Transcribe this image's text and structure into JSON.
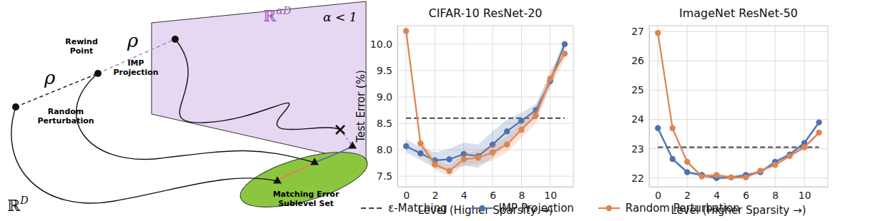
{
  "diagram": {
    "space_full": {
      "base": "ℝ",
      "exp": "D"
    },
    "space_sub": {
      "base": "ℝ",
      "exp": "αD"
    },
    "constraint": "α < 1",
    "rho": "ρ",
    "rewind": [
      "Rewind",
      "Point"
    ],
    "perturbation": [
      "Random",
      "Perturbation"
    ],
    "projection": [
      "IMP",
      "Projection"
    ],
    "sublevel": [
      "Matching Error",
      "Sublevel Set"
    ]
  },
  "chart_data": [
    {
      "type": "line",
      "title": "CIFAR-10 ResNet-20",
      "x_label": "Level (Higher Sparsity →)",
      "y_label": "Test Error (%)",
      "x": [
        0,
        1,
        2,
        3,
        4,
        5,
        6,
        7,
        8,
        9,
        10,
        11
      ],
      "xlim": [
        -0.6,
        11.6
      ],
      "xticks": [
        0,
        2,
        4,
        6,
        8,
        10
      ],
      "ylim": [
        7.3,
        10.35
      ],
      "yticks": [
        7.5,
        {
          "value": 8,
          "label": "8.0"
        },
        8.5,
        {
          "value": 9,
          "label": "9.0"
        },
        9.5,
        {
          "value": 10,
          "label": "10.0"
        }
      ],
      "grid": true,
      "legend": "bottom",
      "series": [
        {
          "name": "ε-Matching",
          "color": "#444444",
          "line_style": "dashed",
          "values": [
            8.6,
            8.6,
            8.6,
            8.6,
            8.6,
            8.6,
            8.6,
            8.6,
            8.6,
            8.6,
            8.6,
            8.6
          ]
        },
        {
          "name": "IMP Projection",
          "color": "#4c72b0",
          "marker": "circle",
          "values": [
            8.07,
            7.93,
            7.8,
            7.82,
            7.92,
            7.88,
            8.1,
            8.35,
            8.55,
            8.75,
            9.3,
            10.0
          ],
          "error": [
            0.12,
            0.12,
            0.15,
            0.2,
            0.22,
            0.22,
            0.25,
            0.22,
            0.15,
            0.12,
            0.12,
            0.1
          ]
        },
        {
          "name": "Random Perturbation",
          "color": "#dd8452",
          "marker": "circle",
          "values": [
            10.25,
            8.12,
            7.72,
            7.6,
            7.82,
            7.85,
            7.95,
            8.1,
            8.38,
            8.65,
            9.35,
            9.82
          ],
          "error": [
            0.12,
            0.1,
            0.1,
            0.1,
            0.12,
            0.12,
            0.15,
            0.15,
            0.15,
            0.15,
            0.15,
            0.12
          ]
        }
      ]
    },
    {
      "type": "line",
      "title": "ImageNet ResNet-50",
      "x_label": "Level (Higher Sparsity →)",
      "x": [
        0,
        1,
        2,
        3,
        4,
        5,
        6,
        7,
        8,
        9,
        10,
        11
      ],
      "xlim": [
        -0.6,
        11.6
      ],
      "xticks": [
        0,
        2,
        4,
        6,
        8,
        10
      ],
      "ylim": [
        21.7,
        27.2
      ],
      "yticks": [
        22,
        23,
        24,
        25,
        26,
        27
      ],
      "grid": true,
      "series": [
        {
          "name": "ε-Matching",
          "color": "#444444",
          "line_style": "dashed",
          "values": [
            23.05,
            23.05,
            23.05,
            23.05,
            23.05,
            23.05,
            23.05,
            23.05,
            23.05,
            23.05,
            23.05,
            23.05
          ]
        },
        {
          "name": "IMP Projection",
          "color": "#4c72b0",
          "marker": "circle",
          "values": [
            23.7,
            22.65,
            22.2,
            22.1,
            22.0,
            22.02,
            22.1,
            22.2,
            22.55,
            22.8,
            23.2,
            23.9
          ],
          "error": [
            0.08,
            0.06,
            0.06,
            0.06,
            0.06,
            0.06,
            0.06,
            0.06,
            0.06,
            0.06,
            0.06,
            0.08
          ]
        },
        {
          "name": "Random Perturbation",
          "color": "#dd8452",
          "marker": "circle",
          "values": [
            26.95,
            23.7,
            22.55,
            22.05,
            22.1,
            22.02,
            22.02,
            22.25,
            22.45,
            22.75,
            23.05,
            23.55
          ],
          "error": [
            0.1,
            0.08,
            0.06,
            0.06,
            0.06,
            0.06,
            0.06,
            0.06,
            0.06,
            0.06,
            0.06,
            0.08
          ]
        }
      ]
    }
  ]
}
